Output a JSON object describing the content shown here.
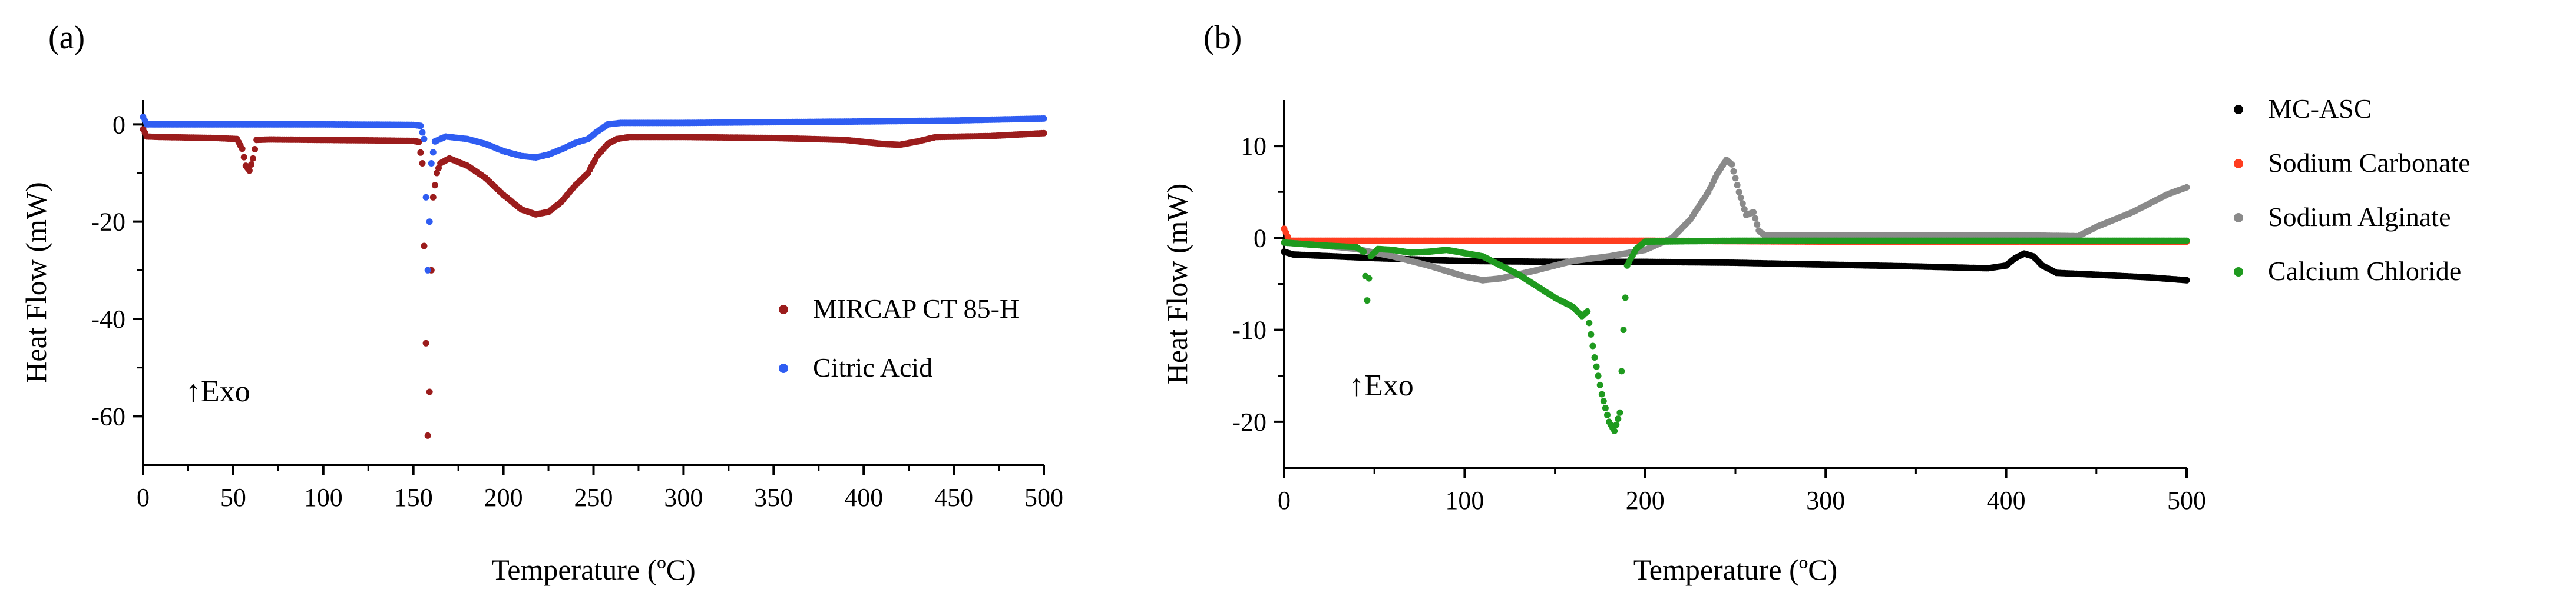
{
  "figure": {
    "panel_a_label": "(a)",
    "panel_b_label": "(b)"
  },
  "chart_data": [
    {
      "panel": "(a)",
      "type": "scatter",
      "title": "",
      "xlabel": "Temperature (ºC)",
      "ylabel": "Heat Flow (mW)",
      "xlim": [
        0,
        500
      ],
      "ylim": [
        -70,
        5
      ],
      "xticks": [
        0,
        50,
        100,
        150,
        200,
        250,
        300,
        350,
        400,
        450,
        500
      ],
      "yticks": [
        0,
        -20,
        -40,
        -60
      ],
      "annotation": "↑Exo",
      "legend_position": "center-right",
      "series": [
        {
          "name": "MIRCAP CT 85-H",
          "color": "#9b1c1c",
          "points": [
            [
              0,
              -1
            ],
            [
              2,
              -2.5
            ],
            [
              10,
              -2.6
            ],
            [
              40,
              -2.8
            ],
            [
              52,
              -3
            ],
            [
              55,
              -5
            ],
            [
              57,
              -8.5
            ],
            [
              59,
              -9.5
            ],
            [
              61,
              -7
            ],
            [
              63,
              -3.2
            ],
            [
              70,
              -3.1
            ],
            [
              100,
              -3.2
            ],
            [
              130,
              -3.3
            ],
            [
              150,
              -3.4
            ],
            [
              153,
              -3.6
            ],
            [
              155,
              -8
            ],
            [
              156,
              -25
            ],
            [
              157,
              -45
            ],
            [
              158,
              -64
            ],
            [
              159,
              -55
            ],
            [
              160,
              -30
            ],
            [
              161,
              -15
            ],
            [
              163,
              -10
            ],
            [
              165,
              -8
            ],
            [
              170,
              -7
            ],
            [
              180,
              -8.5
            ],
            [
              190,
              -11
            ],
            [
              200,
              -14.5
            ],
            [
              210,
              -17.5
            ],
            [
              218,
              -18.5
            ],
            [
              225,
              -18
            ],
            [
              232,
              -16
            ],
            [
              240,
              -12.5
            ],
            [
              247,
              -10
            ],
            [
              252,
              -6.5
            ],
            [
              258,
              -4
            ],
            [
              263,
              -3
            ],
            [
              270,
              -2.6
            ],
            [
              300,
              -2.6
            ],
            [
              350,
              -2.8
            ],
            [
              390,
              -3.2
            ],
            [
              410,
              -4
            ],
            [
              420,
              -4.2
            ],
            [
              430,
              -3.5
            ],
            [
              440,
              -2.6
            ],
            [
              470,
              -2.4
            ],
            [
              500,
              -1.8
            ]
          ]
        },
        {
          "name": "Citric Acid",
          "color": "#2f5df2",
          "points": [
            [
              0,
              1.5
            ],
            [
              2,
              0
            ],
            [
              10,
              0
            ],
            [
              50,
              0
            ],
            [
              100,
              0
            ],
            [
              150,
              -0.1
            ],
            [
              154,
              -0.3
            ],
            [
              156,
              -3
            ],
            [
              157,
              -15
            ],
            [
              158,
              -30
            ],
            [
              159,
              -20
            ],
            [
              160,
              -8
            ],
            [
              162,
              -3.5
            ],
            [
              168,
              -2.5
            ],
            [
              180,
              -3
            ],
            [
              190,
              -4
            ],
            [
              200,
              -5.5
            ],
            [
              210,
              -6.5
            ],
            [
              218,
              -6.8
            ],
            [
              225,
              -6.2
            ],
            [
              233,
              -5
            ],
            [
              240,
              -3.8
            ],
            [
              247,
              -3
            ],
            [
              252,
              -1.5
            ],
            [
              258,
              0
            ],
            [
              265,
              0.3
            ],
            [
              300,
              0.3
            ],
            [
              400,
              0.6
            ],
            [
              450,
              0.8
            ],
            [
              500,
              1.2
            ]
          ]
        }
      ]
    },
    {
      "panel": "(b)",
      "type": "scatter",
      "title": "",
      "xlabel": "Temperature (ºC)",
      "ylabel": "Heat Flow (mW)",
      "xlim": [
        0,
        500
      ],
      "ylim": [
        -25,
        15
      ],
      "xticks": [
        0,
        100,
        200,
        300,
        400,
        500
      ],
      "yticks": [
        10,
        0,
        -10,
        -20
      ],
      "annotation": "↑Exo",
      "legend_position": "right",
      "series": [
        {
          "name": "MC-ASC",
          "color": "#000000",
          "points": [
            [
              0,
              -1.5
            ],
            [
              5,
              -1.8
            ],
            [
              50,
              -2.2
            ],
            [
              100,
              -2.5
            ],
            [
              150,
              -2.6
            ],
            [
              200,
              -2.6
            ],
            [
              250,
              -2.7
            ],
            [
              300,
              -2.9
            ],
            [
              350,
              -3.1
            ],
            [
              390,
              -3.3
            ],
            [
              400,
              -3
            ],
            [
              405,
              -2.2
            ],
            [
              410,
              -1.7
            ],
            [
              415,
              -2
            ],
            [
              420,
              -3
            ],
            [
              428,
              -3.8
            ],
            [
              450,
              -4
            ],
            [
              480,
              -4.3
            ],
            [
              500,
              -4.6
            ]
          ]
        },
        {
          "name": "Sodium Carbonate",
          "color": "#ff3d1f",
          "points": [
            [
              0,
              1
            ],
            [
              3,
              -0.3
            ],
            [
              20,
              -0.3
            ],
            [
              50,
              -0.3
            ],
            [
              100,
              -0.3
            ],
            [
              200,
              -0.3
            ],
            [
              300,
              -0.4
            ],
            [
              400,
              -0.4
            ],
            [
              500,
              -0.4
            ]
          ]
        },
        {
          "name": "Sodium Alginate",
          "color": "#8a8a8a",
          "points": [
            [
              0,
              -0.5
            ],
            [
              20,
              -0.8
            ],
            [
              40,
              -1.2
            ],
            [
              60,
              -2
            ],
            [
              80,
              -3
            ],
            [
              100,
              -4.2
            ],
            [
              110,
              -4.6
            ],
            [
              120,
              -4.4
            ],
            [
              140,
              -3.5
            ],
            [
              160,
              -2.5
            ],
            [
              180,
              -2
            ],
            [
              200,
              -1.3
            ],
            [
              215,
              0
            ],
            [
              225,
              2
            ],
            [
              235,
              5
            ],
            [
              240,
              7
            ],
            [
              245,
              8.5
            ],
            [
              248,
              8
            ],
            [
              252,
              5
            ],
            [
              256,
              2.5
            ],
            [
              260,
              2.8
            ],
            [
              263,
              0.8
            ],
            [
              266,
              0.3
            ],
            [
              300,
              0.3
            ],
            [
              350,
              0.3
            ],
            [
              400,
              0.3
            ],
            [
              440,
              0.2
            ],
            [
              450,
              1.2
            ],
            [
              470,
              2.8
            ],
            [
              490,
              4.8
            ],
            [
              500,
              5.5
            ]
          ]
        },
        {
          "name": "Calcium Chloride",
          "color": "#1f9a1f",
          "points": [
            [
              0,
              -0.5
            ],
            [
              20,
              -0.8
            ],
            [
              40,
              -1
            ],
            [
              44,
              -1.5
            ],
            [
              46,
              -6.8
            ],
            [
              48,
              -2
            ],
            [
              52,
              -1.2
            ],
            [
              60,
              -1.3
            ],
            [
              70,
              -1.6
            ],
            [
              80,
              -1.5
            ],
            [
              90,
              -1.3
            ],
            [
              110,
              -2
            ],
            [
              130,
              -4
            ],
            [
              150,
              -6.5
            ],
            [
              160,
              -7.5
            ],
            [
              165,
              -8.5
            ],
            [
              168,
              -8
            ],
            [
              172,
              -13
            ],
            [
              176,
              -17
            ],
            [
              180,
              -20
            ],
            [
              183,
              -21
            ],
            [
              186,
              -19
            ],
            [
              188,
              -10
            ],
            [
              190,
              -3
            ],
            [
              195,
              -1.2
            ],
            [
              200,
              -0.4
            ],
            [
              250,
              -0.3
            ],
            [
              300,
              -0.3
            ],
            [
              400,
              -0.3
            ],
            [
              500,
              -0.3
            ]
          ]
        }
      ]
    }
  ]
}
